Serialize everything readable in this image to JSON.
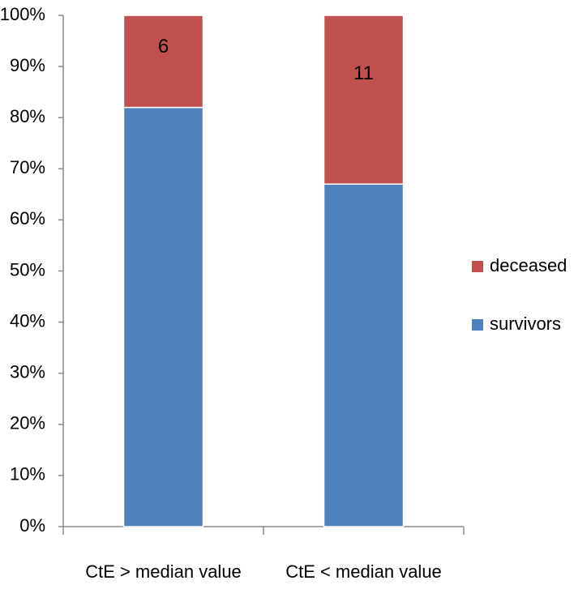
{
  "chart_data": {
    "type": "stacked_bar_100",
    "categories": [
      "CtE > median value",
      "CtE < median value"
    ],
    "series": [
      {
        "name": "survivors",
        "color": "#4f81bd",
        "values": [
          82,
          67
        ]
      },
      {
        "name": "deceased",
        "color": "#c0504d",
        "values": [
          18,
          33
        ],
        "counts": [
          6,
          11
        ]
      }
    ],
    "ylim": [
      0,
      100
    ],
    "yticks": [
      {
        "value": 0,
        "label": "0%"
      },
      {
        "value": 10,
        "label": "10%"
      },
      {
        "value": 20,
        "label": "20%"
      },
      {
        "value": 30,
        "label": "30%"
      },
      {
        "value": 40,
        "label": "40%"
      },
      {
        "value": 50,
        "label": "50%"
      },
      {
        "value": 60,
        "label": "60%"
      },
      {
        "value": 70,
        "label": "70%"
      },
      {
        "value": 80,
        "label": "80%"
      },
      {
        "value": 90,
        "label": "90%"
      },
      {
        "value": 100,
        "label": "100%"
      }
    ],
    "grid": false,
    "legend": "right"
  }
}
